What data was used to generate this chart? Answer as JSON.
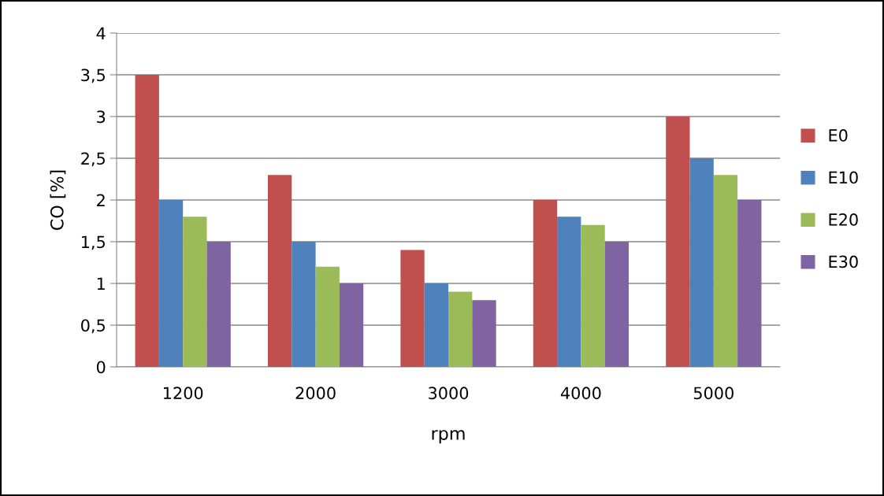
{
  "chart_data": {
    "type": "bar",
    "xlabel": "rpm",
    "ylabel": "CO [%]",
    "categories": [
      "1200",
      "2000",
      "3000",
      "4000",
      "5000"
    ],
    "series": [
      {
        "name": "E0",
        "color": "#c0504d",
        "values": [
          3.5,
          2.3,
          1.4,
          2.0,
          3.0
        ]
      },
      {
        "name": "E10",
        "color": "#4f81bd",
        "values": [
          2.0,
          1.5,
          1.0,
          1.8,
          2.5
        ]
      },
      {
        "name": "E20",
        "color": "#9bbb59",
        "values": [
          1.8,
          1.2,
          0.9,
          1.7,
          2.3
        ]
      },
      {
        "name": "E30",
        "color": "#8064a2",
        "values": [
          1.5,
          1.0,
          0.8,
          1.5,
          2.0
        ]
      }
    ],
    "ylim": [
      0,
      4
    ],
    "yticks": [
      0,
      {
        "value": 0.5,
        "label": "0,5"
      },
      1,
      {
        "value": 1.5,
        "label": "1,5"
      },
      2,
      {
        "value": 2.5,
        "label": "2,5"
      },
      3,
      {
        "value": 3.5,
        "label": "3,5"
      },
      4
    ],
    "grid": "y",
    "legend": "right"
  }
}
